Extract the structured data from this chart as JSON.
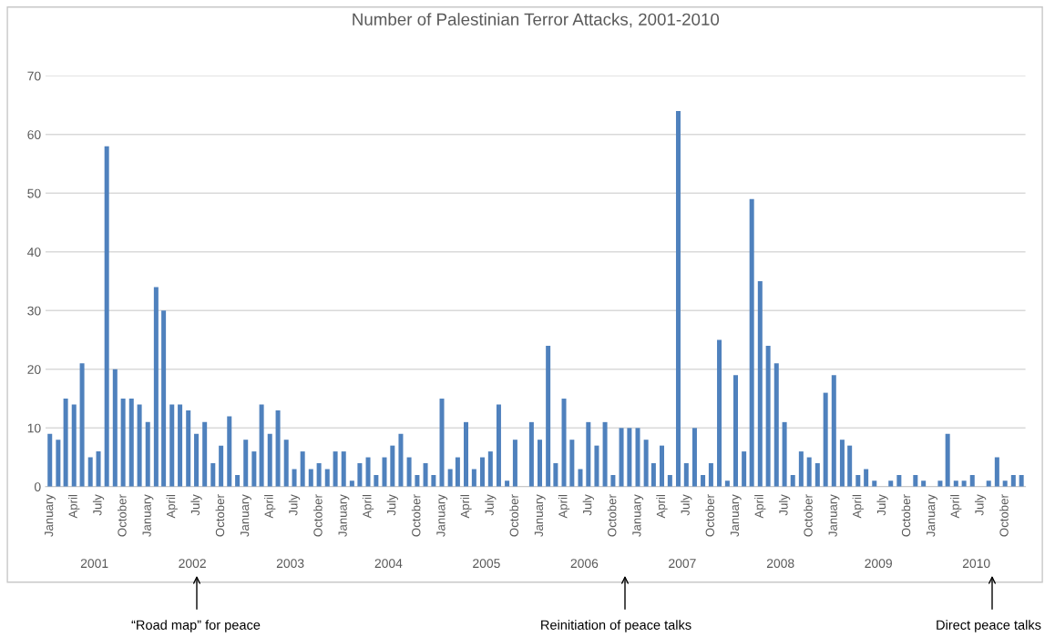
{
  "chart_data": {
    "type": "bar",
    "title": "Number of Palestinian Terror Attacks, 2001-2010",
    "x": [
      "2001-01",
      "2001-02",
      "2001-03",
      "2001-04",
      "2001-05",
      "2001-06",
      "2001-07",
      "2001-08",
      "2001-09",
      "2001-10",
      "2001-11",
      "2001-12",
      "2002-01",
      "2002-02",
      "2002-03",
      "2002-04",
      "2002-05",
      "2002-06",
      "2002-07",
      "2002-08",
      "2002-09",
      "2002-10",
      "2002-11",
      "2002-12",
      "2003-01",
      "2003-02",
      "2003-03",
      "2003-04",
      "2003-05",
      "2003-06",
      "2003-07",
      "2003-08",
      "2003-09",
      "2003-10",
      "2003-11",
      "2003-12",
      "2004-01",
      "2004-02",
      "2004-03",
      "2004-04",
      "2004-05",
      "2004-06",
      "2004-07",
      "2004-08",
      "2004-09",
      "2004-10",
      "2004-11",
      "2004-12",
      "2005-01",
      "2005-02",
      "2005-03",
      "2005-04",
      "2005-05",
      "2005-06",
      "2005-07",
      "2005-08",
      "2005-09",
      "2005-10",
      "2005-11",
      "2005-12",
      "2006-01",
      "2006-02",
      "2006-03",
      "2006-04",
      "2006-05",
      "2006-06",
      "2006-07",
      "2006-08",
      "2006-09",
      "2006-10",
      "2006-11",
      "2006-12",
      "2007-01",
      "2007-02",
      "2007-03",
      "2007-04",
      "2007-05",
      "2007-06",
      "2007-07",
      "2007-08",
      "2007-09",
      "2007-10",
      "2007-11",
      "2007-12",
      "2008-01",
      "2008-02",
      "2008-03",
      "2008-04",
      "2008-05",
      "2008-06",
      "2008-07",
      "2008-08",
      "2008-09",
      "2008-10",
      "2008-11",
      "2008-12",
      "2009-01",
      "2009-02",
      "2009-03",
      "2009-04",
      "2009-05",
      "2009-06",
      "2009-07",
      "2009-08",
      "2009-09",
      "2009-10",
      "2009-11",
      "2009-12",
      "2010-01",
      "2010-02",
      "2010-03",
      "2010-04",
      "2010-05",
      "2010-06",
      "2010-07",
      "2010-08",
      "2010-09",
      "2010-10",
      "2010-11",
      "2010-12"
    ],
    "values": [
      9,
      8,
      15,
      14,
      21,
      5,
      6,
      58,
      20,
      15,
      15,
      14,
      11,
      34,
      30,
      14,
      14,
      13,
      9,
      11,
      4,
      7,
      12,
      2,
      8,
      6,
      14,
      9,
      13,
      8,
      3,
      6,
      3,
      4,
      3,
      6,
      6,
      1,
      4,
      5,
      2,
      5,
      7,
      9,
      5,
      2,
      4,
      2,
      15,
      3,
      5,
      11,
      3,
      5,
      6,
      14,
      1,
      8,
      0,
      11,
      8,
      24,
      4,
      15,
      8,
      3,
      11,
      7,
      11,
      2,
      10,
      10,
      10,
      8,
      4,
      7,
      2,
      64,
      4,
      10,
      2,
      4,
      25,
      1,
      19,
      6,
      49,
      35,
      24,
      21,
      11,
      2,
      6,
      5,
      4,
      16,
      19,
      8,
      7,
      2,
      3,
      1,
      0,
      1,
      2,
      0,
      2,
      1,
      0,
      1,
      9,
      1,
      1,
      2,
      0,
      1,
      5,
      1,
      2,
      2
    ],
    "color": "#4f81bd",
    "ylim": [
      0,
      70
    ],
    "yticks": [
      0,
      10,
      20,
      30,
      40,
      50,
      60,
      70
    ],
    "xlim": [
      "2000-12-16",
      "2010-12-16"
    ],
    "xticks": [
      {
        "value": "2001-01",
        "label": "January"
      },
      {
        "value": "2001-04",
        "label": "April"
      },
      {
        "value": "2001-07",
        "label": "July"
      },
      {
        "value": "2001-10",
        "label": "October"
      },
      {
        "value": "2002-01",
        "label": "January"
      },
      {
        "value": "2002-04",
        "label": "April"
      },
      {
        "value": "2002-07",
        "label": "July"
      },
      {
        "value": "2002-10",
        "label": "October"
      },
      {
        "value": "2003-01",
        "label": "January"
      },
      {
        "value": "2003-04",
        "label": "April"
      },
      {
        "value": "2003-07",
        "label": "July"
      },
      {
        "value": "2003-10",
        "label": "October"
      },
      {
        "value": "2004-01",
        "label": "January"
      },
      {
        "value": "2004-04",
        "label": "April"
      },
      {
        "value": "2004-07",
        "label": "July"
      },
      {
        "value": "2004-10",
        "label": "October"
      },
      {
        "value": "2005-01",
        "label": "January"
      },
      {
        "value": "2005-04",
        "label": "April"
      },
      {
        "value": "2005-07",
        "label": "July"
      },
      {
        "value": "2005-10",
        "label": "October"
      },
      {
        "value": "2006-01",
        "label": "January"
      },
      {
        "value": "2006-04",
        "label": "April"
      },
      {
        "value": "2006-07",
        "label": "July"
      },
      {
        "value": "2006-10",
        "label": "October"
      },
      {
        "value": "2007-01",
        "label": "January"
      },
      {
        "value": "2007-04",
        "label": "April"
      },
      {
        "value": "2007-07",
        "label": "July"
      },
      {
        "value": "2007-10",
        "label": "October"
      },
      {
        "value": "2008-01",
        "label": "January"
      },
      {
        "value": "2008-04",
        "label": "April"
      },
      {
        "value": "2008-07",
        "label": "July"
      },
      {
        "value": "2008-10",
        "label": "October"
      },
      {
        "value": "2009-01",
        "label": "January"
      },
      {
        "value": "2009-04",
        "label": "April"
      },
      {
        "value": "2009-07",
        "label": "July"
      },
      {
        "value": "2009-10",
        "label": "October"
      },
      {
        "value": "2010-01",
        "label": "January"
      },
      {
        "value": "2010-04",
        "label": "April"
      },
      {
        "value": "2010-07",
        "label": "July"
      },
      {
        "value": "2010-10",
        "label": "October"
      }
    ],
    "grid": "y",
    "legend": false,
    "x2lim": [
      "2000-12-16",
      "2010-12-16"
    ],
    "x2ticks": [
      {
        "value": "2001-06-16",
        "label": "2001"
      },
      {
        "value": "2002-06-16",
        "label": "2002"
      },
      {
        "value": "2003-06-16",
        "label": "2003"
      },
      {
        "value": "2004-06-16",
        "label": "2004"
      },
      {
        "value": "2005-06-16",
        "label": "2005"
      },
      {
        "value": "2006-06-16",
        "label": "2006"
      },
      {
        "value": "2007-06-16",
        "label": "2007"
      },
      {
        "value": "2008-06-16",
        "label": "2008"
      },
      {
        "value": "2009-06-16",
        "label": "2009"
      },
      {
        "value": "2010-06-16",
        "label": "2010"
      }
    ],
    "annotations": [
      "“Road map” for peace",
      "Reinitiation of peace talks",
      "Direct peace talks"
    ]
  }
}
